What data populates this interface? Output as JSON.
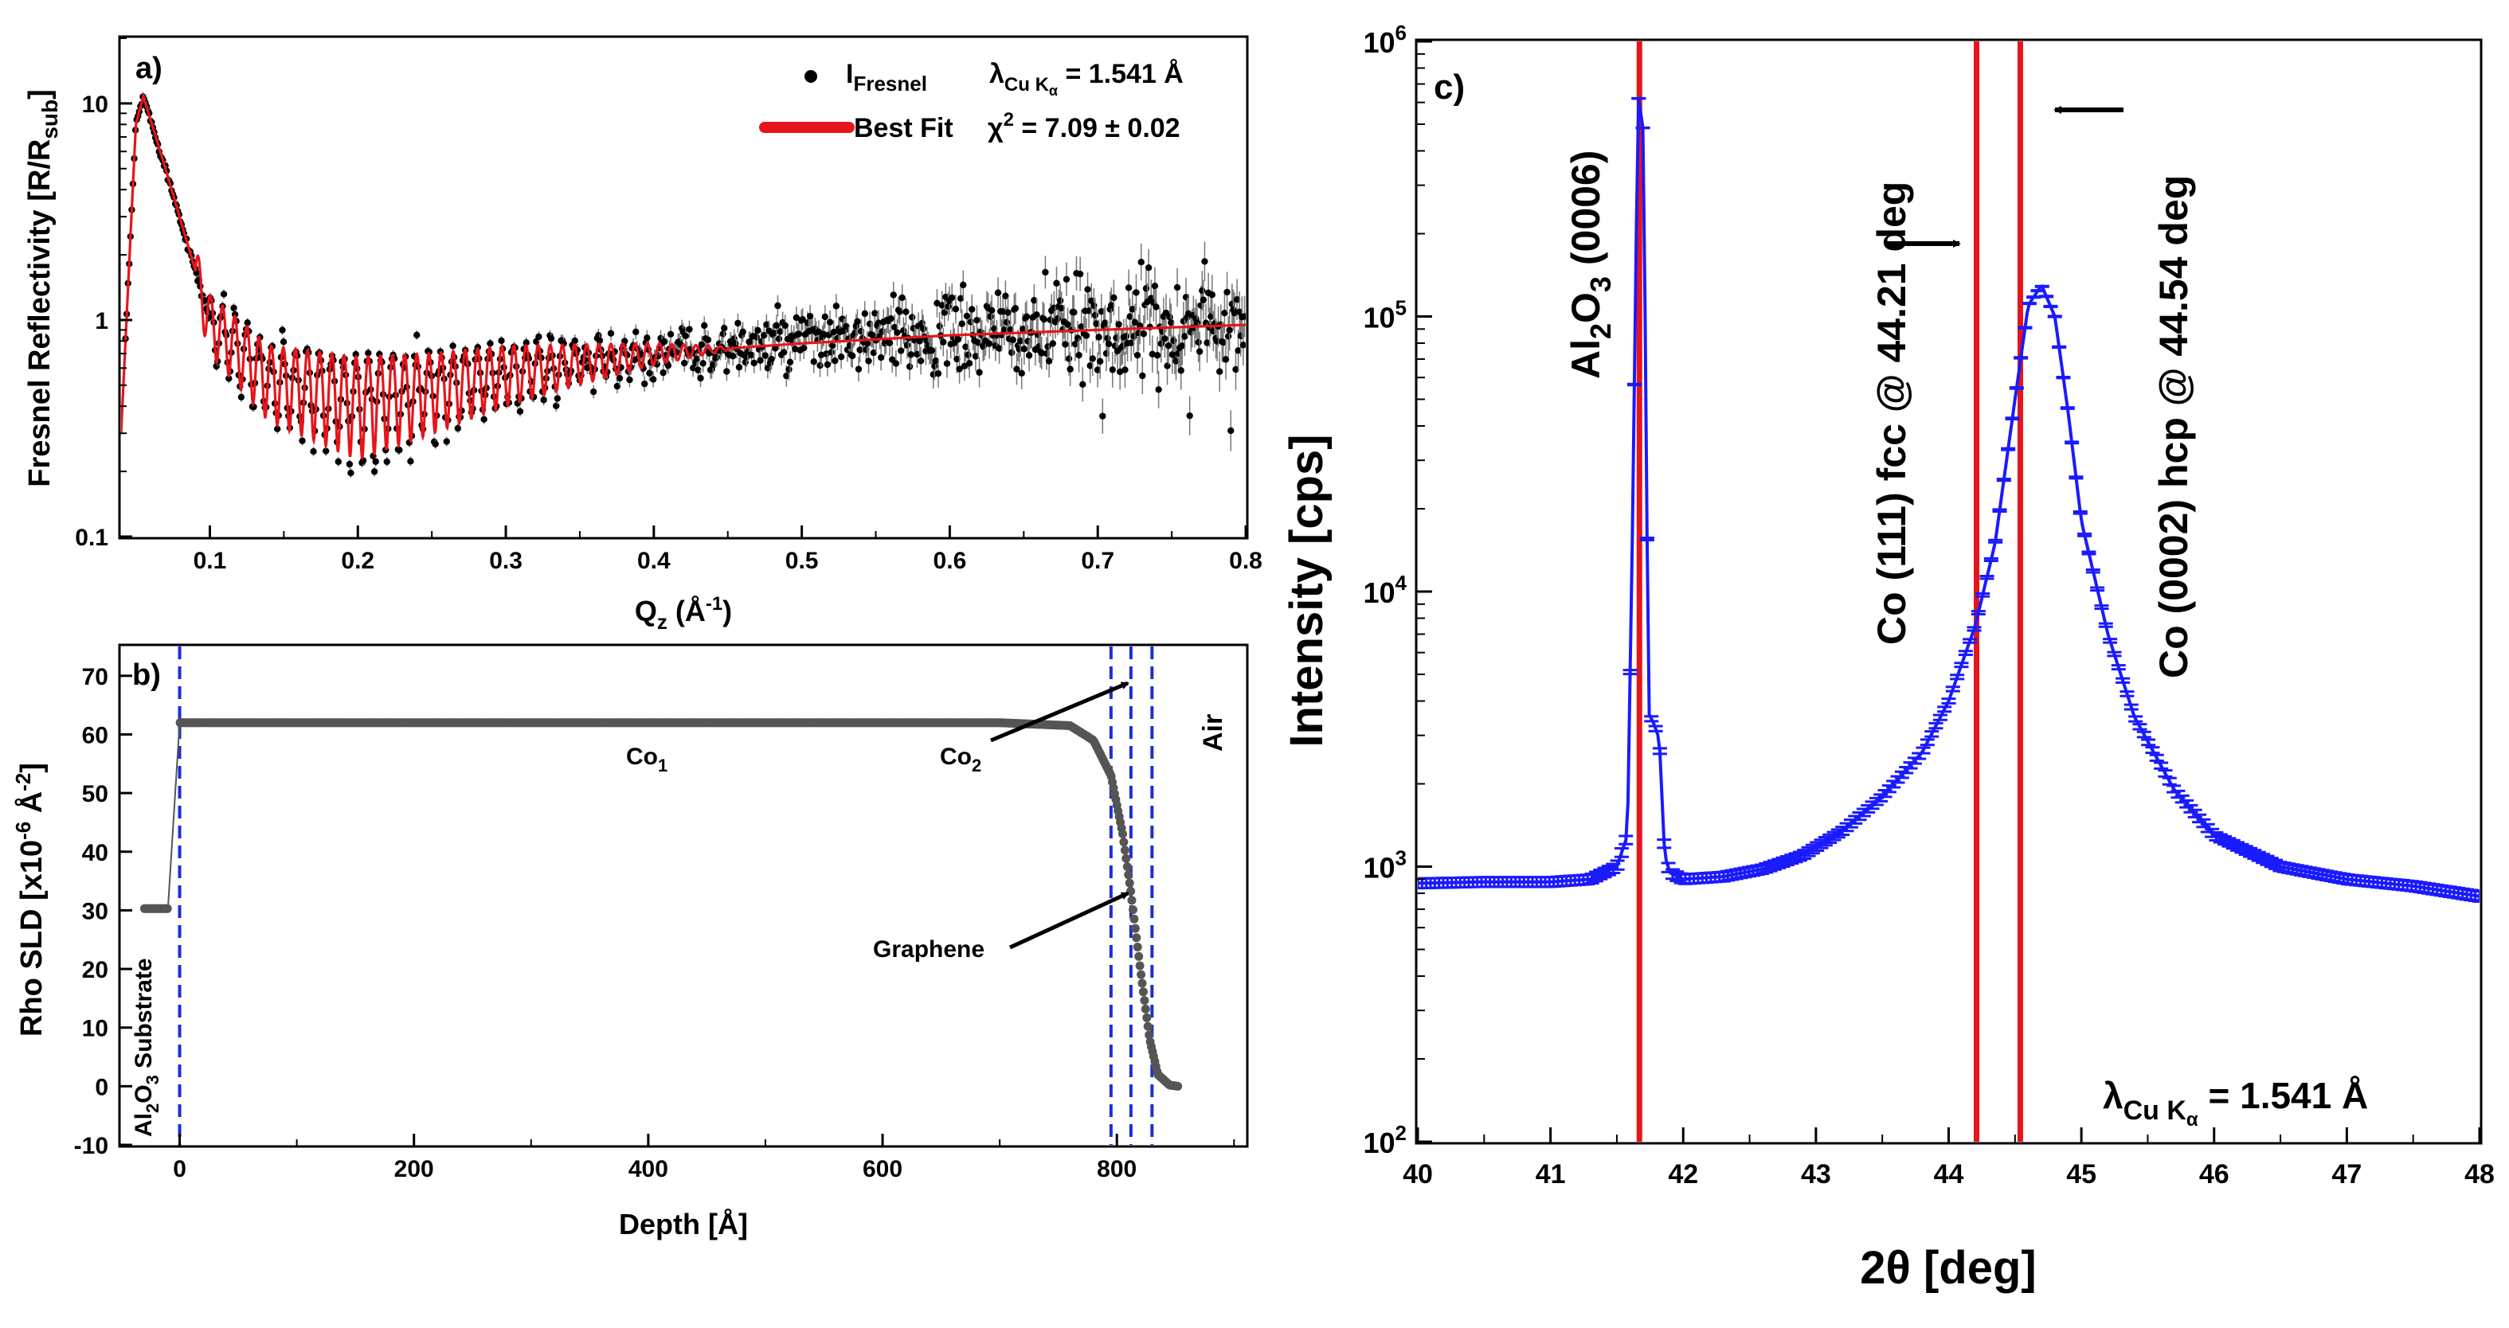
{
  "chart_data": [
    {
      "panel": "a)",
      "type": "scatter",
      "xlabel_main": "Q",
      "xlabel_sub": "z",
      "xlabel_unit_pre": " (Å",
      "xlabel_unit_sup": "-1",
      "xlabel_unit_post": ")",
      "ylabel_main": "Fresnel Reflectivity [R/R",
      "ylabel_sub": "sub",
      "ylabel_end": "]",
      "xlim": [
        0.04,
        0.8
      ],
      "ylim": [
        0.1,
        20
      ],
      "yscale": "log",
      "xticks": [
        0.1,
        0.2,
        0.3,
        0.4,
        0.5,
        0.6,
        0.7,
        0.8
      ],
      "xtick_labels": [
        "0.1",
        "0.2",
        "0.3",
        "0.4",
        "0.5",
        "0.6",
        "0.7",
        "0.8"
      ],
      "yticks": [
        0.1,
        1,
        10
      ],
      "ytick_labels": [
        "0.1",
        "1",
        "10"
      ],
      "legend": {
        "data_main": "I",
        "data_sub": "Fresnel",
        "fit_label": "Best Fit",
        "chi_main": "χ",
        "chi_sup": "2",
        "chi_value": " = 7.09 ± 0.02",
        "lambda_main": "λ",
        "lambda_sub": "Cu K",
        "lambda_subsub": "α",
        "lambda_value": " = 1.541 Å"
      },
      "series": [
        {
          "name": "I Fresnel",
          "style": "black points with error bars",
          "envelope_x": [
            0.04,
            0.05,
            0.055,
            0.07,
            0.1,
            0.14,
            0.2,
            0.25,
            0.3,
            0.4,
            0.5,
            0.6,
            0.7,
            0.8
          ],
          "envelope_y": [
            0.3,
            8,
            10.8,
            5,
            1.0,
            0.55,
            0.45,
            0.5,
            0.58,
            0.7,
            0.78,
            0.85,
            0.9,
            0.95
          ]
        },
        {
          "name": "Best Fit",
          "style": "red line with Kiessig fringes",
          "color": "#e8141b",
          "x": [
            0.04,
            0.05,
            0.055,
            0.07,
            0.1,
            0.14,
            0.2,
            0.25,
            0.3,
            0.4,
            0.5,
            0.6,
            0.7,
            0.8
          ],
          "y": [
            0.3,
            8,
            10.8,
            5,
            1.0,
            0.55,
            0.45,
            0.5,
            0.58,
            0.7,
            0.78,
            0.85,
            0.9,
            0.95
          ]
        }
      ]
    },
    {
      "panel": "b)",
      "type": "line",
      "xlabel": "Depth [Å]",
      "ylabel_pre": "Rho SLD [x10",
      "ylabel_sup1": "-6",
      "ylabel_mid": " Å",
      "ylabel_sup2": "-2",
      "ylabel_end": "]",
      "xlim": [
        -50,
        910
      ],
      "ylim": [
        -10,
        75
      ],
      "xticks": [
        0,
        200,
        400,
        600,
        800
      ],
      "xtick_labels": [
        "0",
        "200",
        "400",
        "600",
        "800"
      ],
      "yticks": [
        -10,
        0,
        10,
        20,
        30,
        40,
        50,
        60,
        70
      ],
      "ytick_labels": [
        "-10",
        "0",
        "10",
        "20",
        "30",
        "40",
        "50",
        "60",
        "70"
      ],
      "x": [
        -30,
        -10,
        0,
        700,
        760,
        780,
        795,
        805,
        812,
        820,
        828,
        835,
        845,
        852
      ],
      "y": [
        30.3,
        30.3,
        62,
        62,
        61.5,
        59,
        53,
        43,
        33,
        20,
        8,
        2,
        0.2,
        0
      ],
      "interfaces_x": [
        0,
        795,
        812,
        830
      ],
      "labels": {
        "substrate_pre": "Al",
        "substrate_sub1": "2",
        "substrate_mid": "O",
        "substrate_sub2": "3",
        "substrate_post": " Substrate",
        "co1_main": "Co",
        "co1_sub": "1",
        "co2_main": "Co",
        "co2_sub": "2",
        "graphene": "Graphene",
        "air": "Air"
      }
    },
    {
      "panel": "c)",
      "type": "line",
      "xlabel": "2θ [deg]",
      "ylabel": "Intensity [cps]",
      "xlim": [
        40,
        48
      ],
      "ylim": [
        100,
        1000000
      ],
      "yscale": "log",
      "xticks": [
        40,
        41,
        42,
        43,
        44,
        45,
        46,
        47,
        48
      ],
      "xtick_labels": [
        "40",
        "41",
        "42",
        "43",
        "44",
        "45",
        "46",
        "47",
        "48"
      ],
      "ytick_exponents": [
        "2",
        "3",
        "4",
        "5",
        "6"
      ],
      "ytick_base": "10",
      "series_color": "#1a1aff",
      "x": [
        40.0,
        40.5,
        41.0,
        41.3,
        41.5,
        41.58,
        41.62,
        41.66,
        41.7,
        41.74,
        41.78,
        41.82,
        41.86,
        41.9,
        42.0,
        42.3,
        42.6,
        42.9,
        43.2,
        43.5,
        43.8,
        44.0,
        44.2,
        44.35,
        44.5,
        44.6,
        44.7,
        44.8,
        44.9,
        45.0,
        45.2,
        45.4,
        45.7,
        46.0,
        46.5,
        47.0,
        47.5,
        48.0
      ],
      "y": [
        870,
        880,
        880,
        900,
        1000,
        1300,
        20000,
        640000,
        470000,
        3600,
        3300,
        2900,
        1100,
        950,
        900,
        920,
        980,
        1100,
        1350,
        1800,
        2600,
        4000,
        7500,
        15000,
        50000,
        110000,
        130000,
        100000,
        45000,
        18000,
        7000,
        3500,
        1900,
        1300,
        1000,
        900,
        850,
        780
      ],
      "vlines_x": [
        41.67,
        44.21,
        44.54
      ],
      "vline_color": "#e8141b",
      "annotations": {
        "al2o3_pre": "Al",
        "al2o3_sub1": "2",
        "al2o3_mid": "O",
        "al2o3_sub2": "3",
        "al2o3_post": " (0006)",
        "fcc": "Co (111) fcc @ 44.21 deg",
        "hcp": "Co (0002) hcp @ 44.54 deg"
      },
      "lambda": {
        "main": "λ",
        "sub": "Cu K",
        "subsub": "α",
        "value": " = 1.541 Å"
      }
    }
  ]
}
